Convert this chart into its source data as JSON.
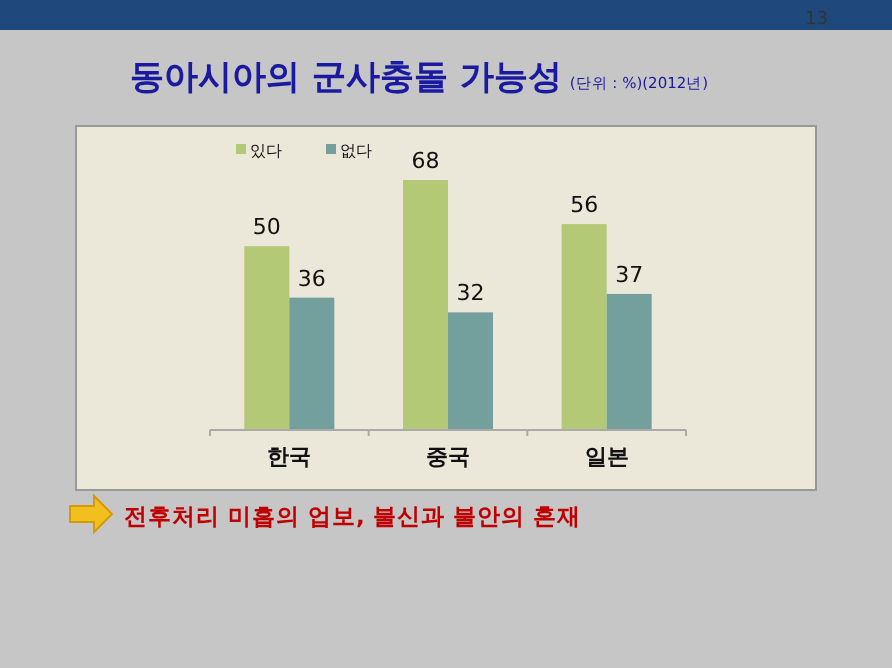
{
  "chart_data": {
    "type": "bar",
    "title": "동아시아의 군사충돌 가능성",
    "subtitle": "(단위 : %)(2012년)",
    "categories": [
      "한국",
      "중국",
      "일본"
    ],
    "series": [
      {
        "name": "있다",
        "color": "#b3c976",
        "values": [
          50,
          68,
          56
        ]
      },
      {
        "name": "없다",
        "color": "#73a09c",
        "values": [
          36,
          32,
          37
        ]
      }
    ],
    "data_labels": true,
    "legend": "top left",
    "annotations": [
      "13",
      "전후처리 미흡의 업보, 불신과 불안의 혼재"
    ]
  }
}
